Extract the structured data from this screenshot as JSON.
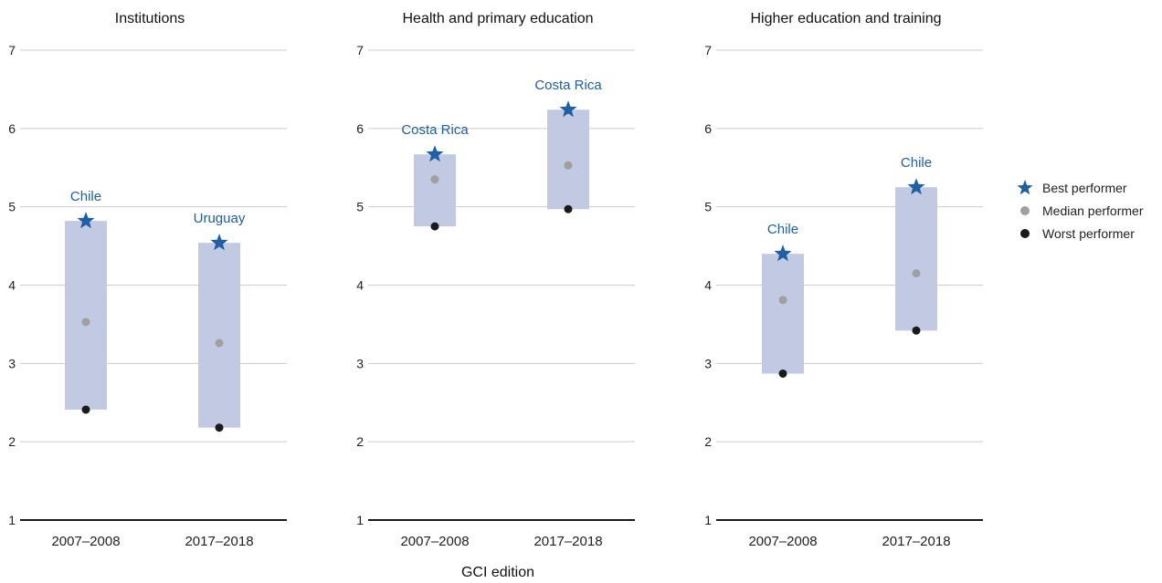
{
  "chart_data": {
    "type": "range",
    "xlabel": "GCI edition",
    "ylim": [
      1,
      7
    ],
    "yticks": [
      1,
      2,
      3,
      4,
      5,
      6,
      7
    ],
    "categories": [
      "2007–2008",
      "2017–2018"
    ],
    "colors": {
      "range": "#c2c9e3",
      "best": "#1f5fa3",
      "median": "#a0a0a0",
      "worst": "#1a1a1a",
      "grid": "#cccccc",
      "axis": "#1a1a1a"
    },
    "legend": {
      "position": "right",
      "items": [
        {
          "key": "best",
          "label": "Best performer",
          "marker": "star-icon"
        },
        {
          "key": "median",
          "label": "Median performer",
          "marker": "dot-icon"
        },
        {
          "key": "worst",
          "label": "Worst performer",
          "marker": "dot-icon"
        }
      ]
    },
    "panels": [
      {
        "title": "Institutions",
        "points": [
          {
            "category": "2007–2008",
            "best": 4.82,
            "median": 3.53,
            "worst": 2.41,
            "best_label": "Chile"
          },
          {
            "category": "2017–2018",
            "best": 4.54,
            "median": 3.26,
            "worst": 2.18,
            "best_label": "Uruguay"
          }
        ]
      },
      {
        "title": "Health and primary education",
        "points": [
          {
            "category": "2007–2008",
            "best": 5.67,
            "median": 5.35,
            "worst": 4.75,
            "best_label": "Costa Rica"
          },
          {
            "category": "2017–2018",
            "best": 6.24,
            "median": 5.53,
            "worst": 4.97,
            "best_label": "Costa Rica"
          }
        ]
      },
      {
        "title": "Higher education and training",
        "points": [
          {
            "category": "2007–2008",
            "best": 4.4,
            "median": 3.81,
            "worst": 2.87,
            "best_label": "Chile"
          },
          {
            "category": "2017–2018",
            "best": 5.25,
            "median": 4.15,
            "worst": 3.42,
            "best_label": "Chile"
          }
        ]
      }
    ]
  }
}
